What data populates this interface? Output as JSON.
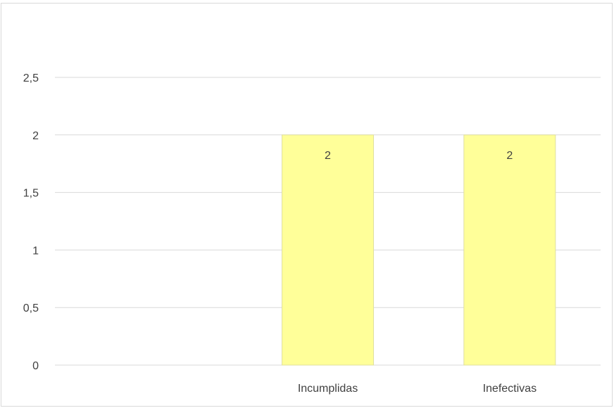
{
  "chart_data": {
    "type": "bar",
    "title": "",
    "xlabel": "",
    "ylabel": "",
    "categories": [
      "",
      "Incumplidas",
      "Inefectivas"
    ],
    "values": [
      null,
      2,
      2
    ],
    "data_labels": [
      "",
      "2",
      "2"
    ],
    "ylim": [
      0,
      2.5
    ],
    "yticks": [
      0,
      0.5,
      1,
      1.5,
      2,
      2.5
    ],
    "ytick_labels": [
      "0",
      "0,5",
      "1",
      "1,5",
      "2",
      "2,5"
    ],
    "grid": true,
    "legend": "none",
    "colors": {
      "bar_fill": "#ffff99",
      "bar_edge": "#e0e0a0",
      "grid": "#d9d9d9",
      "axis": "#d9d9d9",
      "text": "#404040"
    }
  }
}
